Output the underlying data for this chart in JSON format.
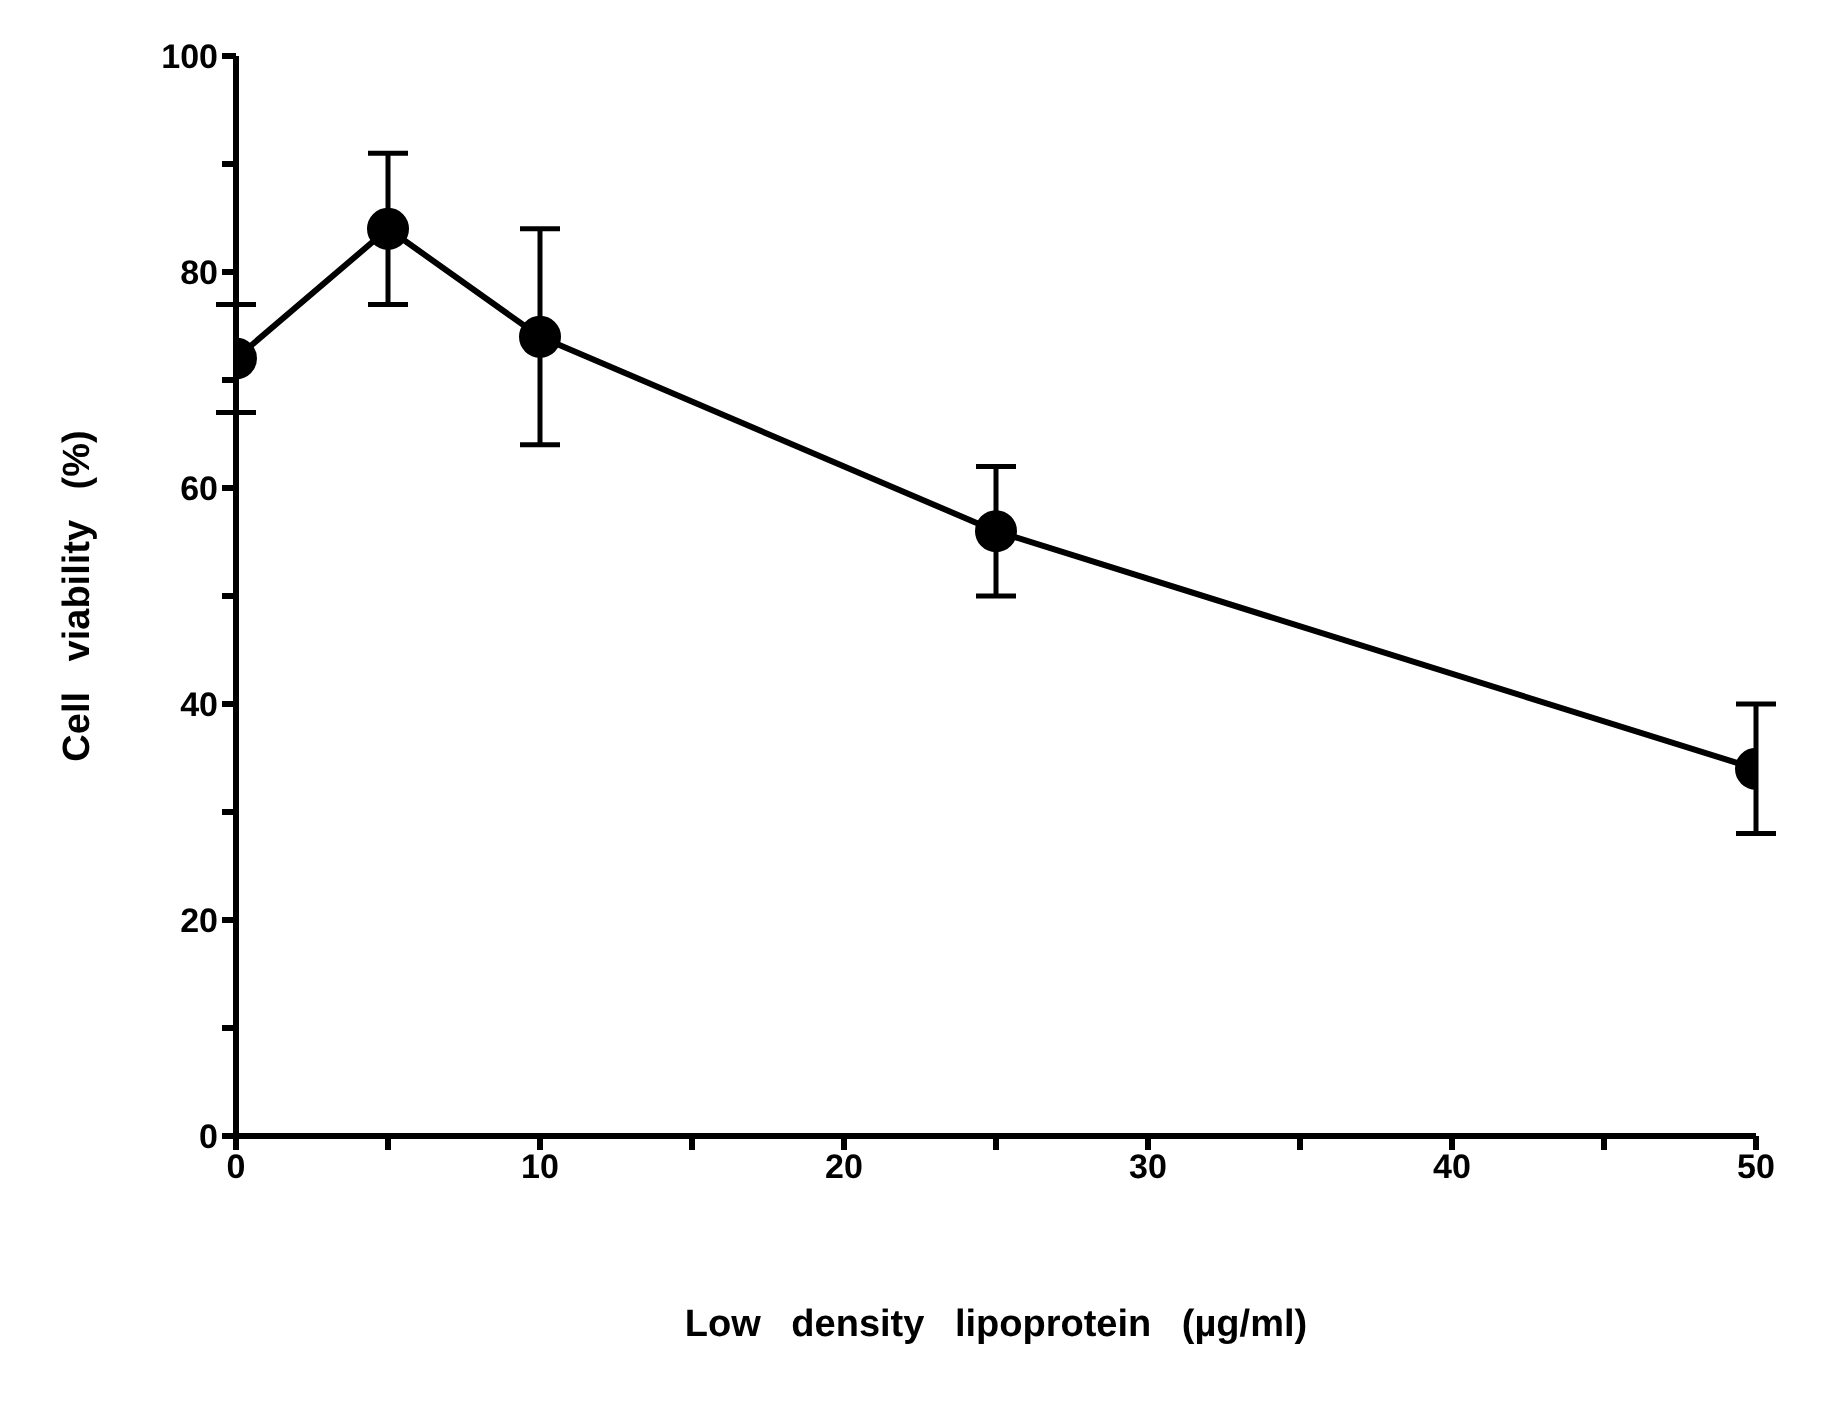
{
  "chart_data": {
    "type": "line",
    "xlabel": "Low density lipoprotein (µg/ml)",
    "ylabel": "Cell viability (%)",
    "x": [
      0,
      5,
      10,
      25,
      50
    ],
    "series": [
      {
        "color": "#000000",
        "values": [
          72,
          84,
          74,
          56,
          34
        ],
        "errors": [
          [
            67,
            77
          ],
          [
            77,
            91
          ],
          [
            64,
            84
          ],
          [
            50,
            62
          ],
          [
            28,
            40
          ]
        ]
      }
    ],
    "xlim": [
      0,
      50
    ],
    "ylim": [
      0,
      100
    ],
    "xticks": [
      0,
      {
        "value": 5,
        "label": null
      },
      10,
      {
        "value": 15,
        "label": null
      },
      20,
      {
        "value": 25,
        "label": null
      },
      30,
      {
        "value": 35,
        "label": null
      },
      40,
      {
        "value": 45,
        "label": null
      },
      50
    ],
    "yticks": [
      0,
      {
        "value": 10,
        "label": null
      },
      20,
      {
        "value": 30,
        "label": null
      },
      40,
      {
        "value": 50,
        "label": null
      },
      60,
      {
        "value": 70,
        "label": null
      },
      80,
      {
        "value": 90,
        "label": null
      },
      100
    ],
    "grid": false,
    "legend": false,
    "marker": "circle",
    "line_style": "solid"
  }
}
